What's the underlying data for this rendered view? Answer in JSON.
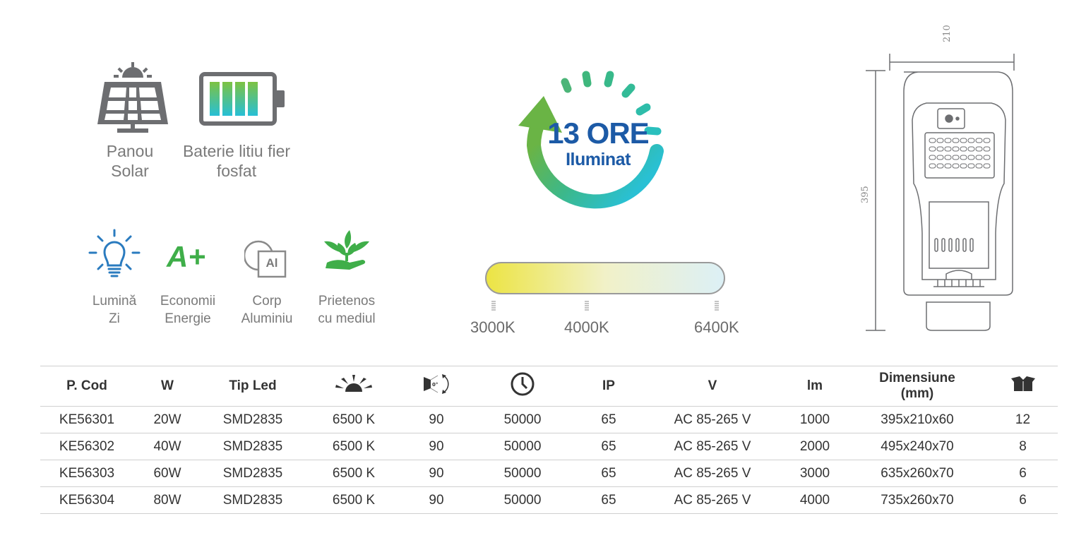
{
  "features_top": [
    {
      "icon": "solar-panel-icon",
      "label_line1": "Panou",
      "label_line2": "Solar"
    },
    {
      "icon": "battery-icon",
      "label_line1": "Baterie litiu fier",
      "label_line2": "fosfat"
    }
  ],
  "features_bottom": [
    {
      "icon": "light-bulb-icon",
      "label_line1": "Lumină",
      "label_line2": "Zi"
    },
    {
      "icon": "a-plus-icon",
      "icon_text": "A+",
      "label_line1": "Economii",
      "label_line2": "Energie"
    },
    {
      "icon": "aluminium-icon",
      "icon_text": "Al",
      "label_line1": "Corp",
      "label_line2": "Aluminiu"
    },
    {
      "icon": "plant-hand-icon",
      "label_line1": "Prietenos",
      "label_line2": "cu mediul"
    }
  ],
  "hours_badge": {
    "line1": "13 ORE",
    "line2": "Iluminat"
  },
  "color_temp": {
    "labels": [
      "3000K",
      "4000K",
      "6400K"
    ]
  },
  "dimensions": {
    "width": "210",
    "height": "395"
  },
  "colors": {
    "green": "#3fae49",
    "blue_text": "#1c5aa6",
    "teal": "#2bbfc9",
    "grey_icon": "#6d6e71"
  },
  "table": {
    "headers": {
      "code": "P. Cod",
      "power": "W",
      "led": "Tip Led",
      "cct_icon": "sun-icon",
      "angle_icon": "beam-angle-icon",
      "life_icon": "clock-icon",
      "ip": "IP",
      "voltage": "V",
      "lumen": "lm",
      "dim_line1": "Dimensiune",
      "dim_line2": "(mm)",
      "box_icon": "box-icon"
    },
    "rows": [
      [
        "KE56301",
        "20W",
        "SMD2835",
        "6500 K",
        "90",
        "50000",
        "65",
        "AC 85-265 V",
        "1000",
        "395x210x60",
        "12"
      ],
      [
        "KE56302",
        "40W",
        "SMD2835",
        "6500 K",
        "90",
        "50000",
        "65",
        "AC 85-265 V",
        "2000",
        "495x240x70",
        "8"
      ],
      [
        "KE56303",
        "60W",
        "SMD2835",
        "6500 K",
        "90",
        "50000",
        "65",
        "AC 85-265 V",
        "3000",
        "635x260x70",
        "6"
      ],
      [
        "KE56304",
        "80W",
        "SMD2835",
        "6500 K",
        "90",
        "50000",
        "65",
        "AC 85-265 V",
        "4000",
        "735x260x70",
        "6"
      ]
    ]
  }
}
